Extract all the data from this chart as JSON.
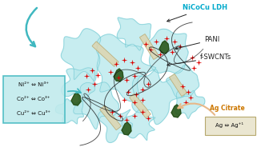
{
  "bg_color": "#ffffff",
  "ldh_color": "#b8e8ec",
  "ldh_edge": "#60c0cc",
  "pani_color": "#2d5a1e",
  "nanotube_color": "#ddd5b0",
  "nanotube_edge": "#b8a870",
  "red_color": "#dd0000",
  "box_left_bg": "#c0eaec",
  "box_left_edge": "#40b8c0",
  "box_left_lines": [
    "Ni²⁺ ⇔ Ni³⁺",
    "Co²⁺ ⇔ Co³⁺",
    "Cu²⁺ ⇔ Cu³⁺"
  ],
  "box_right_bg": "#e8e4cc",
  "box_right_edge": "#b0a060",
  "box_right_text": "Ag ⇔ Ag⁺¹",
  "label_nicocu": "NiCoCu LDH",
  "label_pani": "PANI",
  "label_fswcnt": "f-SWCNTs",
  "label_agcitrate": "Ag Citrate",
  "col_nicocu": "#00aacc",
  "col_pani": "#222222",
  "col_fswcnt": "#222222",
  "col_agcitrate": "#cc7700",
  "arrow_teal": "#40b8c0",
  "arrow_peach": "#e8b888"
}
